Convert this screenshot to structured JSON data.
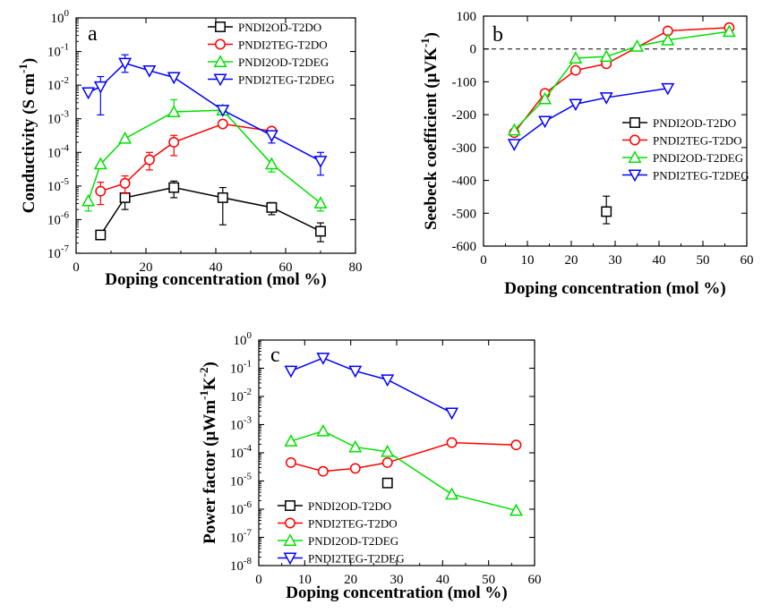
{
  "colors": {
    "PNDI2OD-T2DO": "#000000",
    "PNDI2TEG-T2DO": "#ff0000",
    "PNDI2OD-T2DEG": "#00e000",
    "PNDI2TEG-T2DEG": "#0000ff"
  },
  "markers": {
    "PNDI2OD-T2DO": "square",
    "PNDI2TEG-T2DO": "circle",
    "PNDI2OD-T2DEG": "triangle-up",
    "PNDI2TEG-T2DEG": "triangle-down"
  },
  "chart_data": [
    {
      "id": "a",
      "panel_label": "a",
      "type": "line",
      "xlabel": "Doping concentration (mol %)",
      "ylabel": "Conductivity (S cm",
      "ylabel_sup": "-1",
      "ylabel_tail": ")",
      "yscale": "log",
      "xlim": [
        0,
        80
      ],
      "ylim_exp": [
        -7,
        0
      ],
      "xticks": [
        "0",
        "20",
        "40",
        "60",
        "80"
      ],
      "legend_position": "top-right",
      "series": [
        {
          "name": "PNDI2OD-T2DO",
          "x": [
            7,
            14,
            28,
            42,
            56,
            70
          ],
          "y": [
            3.5e-07,
            4.5e-06,
            9e-06,
            4.5e-06,
            2.3e-06,
            4.5e-07
          ],
          "err_up": [
            null,
            6e-06,
            1.4e-05,
            9e-06,
            3.2e-06,
            8e-07
          ],
          "err_dn": [
            null,
            2e-06,
            4.5e-06,
            7e-07,
            1.4e-06,
            2.2e-07
          ]
        },
        {
          "name": "PNDI2TEG-T2DO",
          "x": [
            7,
            14,
            21,
            28,
            42,
            56
          ],
          "y": [
            7e-06,
            1.2e-05,
            6e-05,
            0.0002,
            0.0007,
            0.00043
          ],
          "err_up": [
            1.3e-05,
            2e-05,
            0.0001,
            0.00032,
            0.0009,
            0.00055
          ],
          "err_dn": [
            2.8e-06,
            6e-06,
            3e-05,
            8e-05,
            0.00055,
            0.00032
          ]
        },
        {
          "name": "PNDI2OD-T2DEG",
          "x": [
            3.5,
            7,
            14,
            28,
            42,
            56,
            70
          ],
          "y": [
            3.6e-06,
            4.5e-05,
            0.00026,
            0.0016,
            0.0018,
            4.5e-05,
            3.1e-06
          ],
          "err_up": [
            null,
            null,
            null,
            0.0037,
            null,
            null,
            null
          ],
          "err_dn": [
            1.8e-06,
            null,
            null,
            null,
            null,
            2.6e-05,
            1.8e-06
          ]
        },
        {
          "name": "PNDI2TEG-T2DEG",
          "x": [
            3.5,
            7,
            14,
            21,
            28,
            42,
            56,
            70
          ],
          "y": [
            0.006,
            0.009,
            0.045,
            0.027,
            0.017,
            0.0018,
            0.00032,
            5.5e-05
          ],
          "err_up": [
            null,
            0.018,
            0.08,
            null,
            null,
            null,
            null,
            0.0001
          ],
          "err_dn": [
            null,
            0.0013,
            0.024,
            null,
            null,
            null,
            0.00019,
            2.1e-05
          ]
        }
      ]
    },
    {
      "id": "b",
      "panel_label": "b",
      "type": "line",
      "xlabel": "Doping concentration (mol %)",
      "ylabel": "Seebeck coefficient (μVK",
      "ylabel_sup": "-1",
      "ylabel_tail": ")",
      "yscale": "linear",
      "xlim": [
        0,
        60
      ],
      "ylim": [
        -600,
        100
      ],
      "xticks": [
        "0",
        "10",
        "20",
        "30",
        "40",
        "50",
        "60"
      ],
      "yticks": [
        "100",
        "0",
        "-100",
        "-200",
        "-300",
        "-400",
        "-500",
        "-600"
      ],
      "zero_line": "dashed",
      "legend_position": "center-right",
      "series": [
        {
          "name": "PNDI2OD-T2DO",
          "x": [
            28
          ],
          "y": [
            -495
          ],
          "err_up": [
            -448
          ],
          "err_dn": [
            -532
          ]
        },
        {
          "name": "PNDI2TEG-T2DO",
          "x": [
            7,
            14,
            21,
            28,
            42,
            56
          ],
          "y": [
            -255,
            -135,
            -65,
            -45,
            55,
            65
          ]
        },
        {
          "name": "PNDI2OD-T2DEG",
          "x": [
            7,
            14,
            21,
            28,
            35,
            42,
            56
          ],
          "y": [
            -247,
            -152,
            -28,
            -23,
            8,
            27,
            53
          ]
        },
        {
          "name": "PNDI2TEG-T2DEG",
          "x": [
            7,
            14,
            21,
            28,
            42
          ],
          "y": [
            -290,
            -220,
            -168,
            -148,
            -120
          ]
        }
      ]
    },
    {
      "id": "c",
      "panel_label": "c",
      "type": "line",
      "xlabel": "Doping concentration (mol %)",
      "ylabel": "Power factor (μWm",
      "ylabel_sup": "-1",
      "ylabel_mid": "K",
      "ylabel_sup2": "-2",
      "ylabel_tail": ")",
      "yscale": "log",
      "xlim": [
        0,
        60
      ],
      "ylim_exp": [
        -8,
        0
      ],
      "xticks": [
        "0",
        "10",
        "20",
        "30",
        "40",
        "50",
        "60"
      ],
      "legend_position": "bottom-left",
      "series": [
        {
          "name": "PNDI2OD-T2DO",
          "x": [
            28
          ],
          "y": [
            8.5e-06
          ]
        },
        {
          "name": "PNDI2TEG-T2DO",
          "x": [
            7,
            14,
            21,
            28,
            42,
            56
          ],
          "y": [
            4.5e-05,
            2.2e-05,
            2.8e-05,
            4.5e-05,
            0.00023,
            0.00019
          ]
        },
        {
          "name": "PNDI2OD-T2DEG",
          "x": [
            7,
            14,
            21,
            28,
            42,
            56
          ],
          "y": [
            0.00026,
            0.00059,
            0.00016,
            0.00011,
            3.4e-06,
            9e-07
          ]
        },
        {
          "name": "PNDI2TEG-T2DEG",
          "x": [
            7,
            14,
            21,
            28,
            42
          ],
          "y": [
            0.08,
            0.23,
            0.08,
            0.039,
            0.0026
          ]
        }
      ]
    }
  ]
}
